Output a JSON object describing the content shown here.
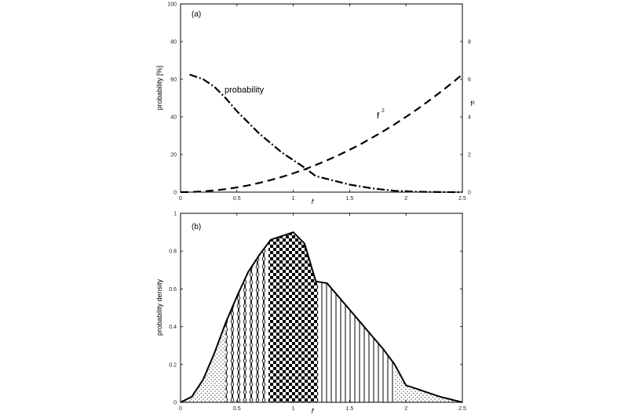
{
  "chart_data": [
    {
      "type": "line",
      "panel_label": "(a)",
      "xlabel": "f",
      "ylabel": "probability [%]",
      "xlim": [
        0,
        2.5
      ],
      "ylim": [
        0,
        100
      ],
      "y2lim": [
        0,
        10
      ],
      "x_ticks": [
        "0",
        "0.5",
        "1",
        "1.5",
        "2",
        "2.5"
      ],
      "y_ticks": [
        "0",
        "20",
        "40",
        "60",
        "80",
        "100"
      ],
      "y2_ticks": [
        "0",
        "2",
        "4",
        "6",
        "8"
      ],
      "y2_tick_values": [
        0,
        2,
        4,
        6,
        8
      ],
      "y2_label": "f²",
      "series": [
        {
          "name": "probability",
          "axis": "left",
          "style": "dash-dot",
          "x": [
            0.08,
            0.2,
            0.3,
            0.4,
            0.5,
            0.6,
            0.7,
            0.8,
            0.9,
            1.0,
            1.1,
            1.2,
            1.3,
            1.5,
            1.7,
            1.9,
            2.1,
            2.3,
            2.5
          ],
          "y": [
            62.5,
            60,
            56,
            50,
            43,
            37,
            31,
            26,
            21,
            17,
            13,
            8.5,
            7,
            4,
            2,
            0.7,
            0.2,
            0.05,
            0
          ]
        },
        {
          "name": "f²",
          "axis": "right",
          "style": "dashed",
          "x": [
            0.0,
            0.1,
            0.2,
            0.3,
            0.4,
            0.5,
            0.6,
            0.7,
            0.8,
            0.9,
            1.0,
            1.1,
            1.2,
            1.3,
            1.4,
            1.5,
            1.6,
            1.7,
            1.8,
            1.9,
            2.0,
            2.1,
            2.2,
            2.3,
            2.4,
            2.5
          ],
          "y": [
            0.0,
            0.01,
            0.04,
            0.09,
            0.16,
            0.25,
            0.36,
            0.49,
            0.64,
            0.81,
            1.0,
            1.21,
            1.44,
            1.69,
            1.96,
            2.25,
            2.56,
            2.89,
            3.24,
            3.61,
            4.0,
            4.41,
            4.84,
            5.29,
            5.76,
            6.25
          ]
        }
      ],
      "annotations": [
        {
          "text": "probability",
          "x": 0.4,
          "y": 54
        },
        {
          "text": "f",
          "superscript": "2",
          "x": 1.77,
          "y": 39
        }
      ]
    },
    {
      "type": "area",
      "panel_label": "(b)",
      "xlabel": "f",
      "ylabel": "probability density",
      "xlim": [
        0,
        2.5
      ],
      "ylim": [
        0,
        1
      ],
      "x_ticks": [
        "0",
        "0.5",
        "1",
        "1.5",
        "2",
        "2.5"
      ],
      "y_ticks": [
        "0",
        "0.2",
        "0.4",
        "0.6",
        "0.8",
        "1"
      ],
      "series": [
        {
          "name": "",
          "x": [
            0.0,
            0.1,
            0.2,
            0.3,
            0.4,
            0.5,
            0.6,
            0.7,
            0.8,
            0.9,
            1.0,
            1.1,
            1.2,
            1.3,
            1.4,
            1.5,
            1.6,
            1.7,
            1.8,
            1.9,
            2.0,
            2.1,
            2.2,
            2.3,
            2.4,
            2.5
          ],
          "y": [
            0.0,
            0.03,
            0.12,
            0.26,
            0.42,
            0.56,
            0.69,
            0.78,
            0.86,
            0.88,
            0.9,
            0.84,
            0.64,
            0.63,
            0.56,
            0.49,
            0.42,
            0.35,
            0.28,
            0.2,
            0.09,
            0.07,
            0.05,
            0.03,
            0.015,
            0.0
          ]
        }
      ],
      "regions": [
        {
          "x_range": [
            0.0,
            0.4
          ],
          "pattern": "dots"
        },
        {
          "x_range": [
            0.4,
            0.78
          ],
          "pattern": "wavy-lines"
        },
        {
          "x_range": [
            0.78,
            1.22
          ],
          "pattern": "checkerboard"
        },
        {
          "x_range": [
            1.22,
            1.9
          ],
          "pattern": "vertical-lines"
        },
        {
          "x_range": [
            1.9,
            2.5
          ],
          "pattern": "dots"
        }
      ]
    }
  ]
}
